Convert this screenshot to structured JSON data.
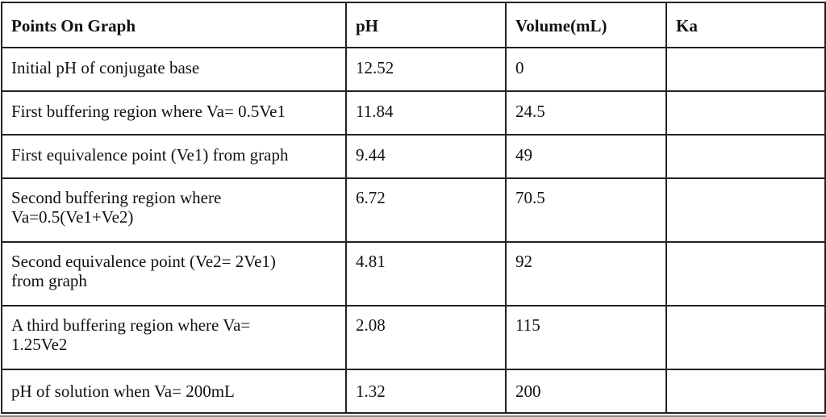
{
  "table": {
    "headers": [
      "Points On Graph",
      "pH",
      "Volume(mL)",
      "Ka"
    ],
    "rows": [
      {
        "point": "Initial pH of conjugate base",
        "ph": "12.52",
        "volume": "0",
        "ka": ""
      },
      {
        "point": "First buffering region where Va= 0.5Ve1",
        "ph": "11.84",
        "volume": "24.5",
        "ka": ""
      },
      {
        "point": "First equivalence point (Ve1) from graph",
        "ph": "9.44",
        "volume": "49",
        "ka": ""
      },
      {
        "point": "Second buffering region where Va=0.5(Ve1+Ve2)",
        "point_line1": "Second buffering region where",
        "point_line2": "Va=0.5(Ve1+Ve2)",
        "ph": "6.72",
        "volume": "70.5",
        "ka": ""
      },
      {
        "point": "Second equivalence point (Ve2= 2Ve1) from graph",
        "point_line1": "Second equivalence point (Ve2= 2Ve1)",
        "point_line2": "from graph",
        "ph": "4.81",
        "volume": "92",
        "ka": ""
      },
      {
        "point": "A third buffering region where Va= 1.25Ve2",
        "point_line1": "A third buffering region where Va=",
        "point_line2": "1.25Ve2",
        "ph": "2.08",
        "volume": "115",
        "ka": ""
      },
      {
        "point": "pH of solution when Va= 200mL",
        "ph": "1.32",
        "volume": "200",
        "ka": ""
      }
    ]
  }
}
